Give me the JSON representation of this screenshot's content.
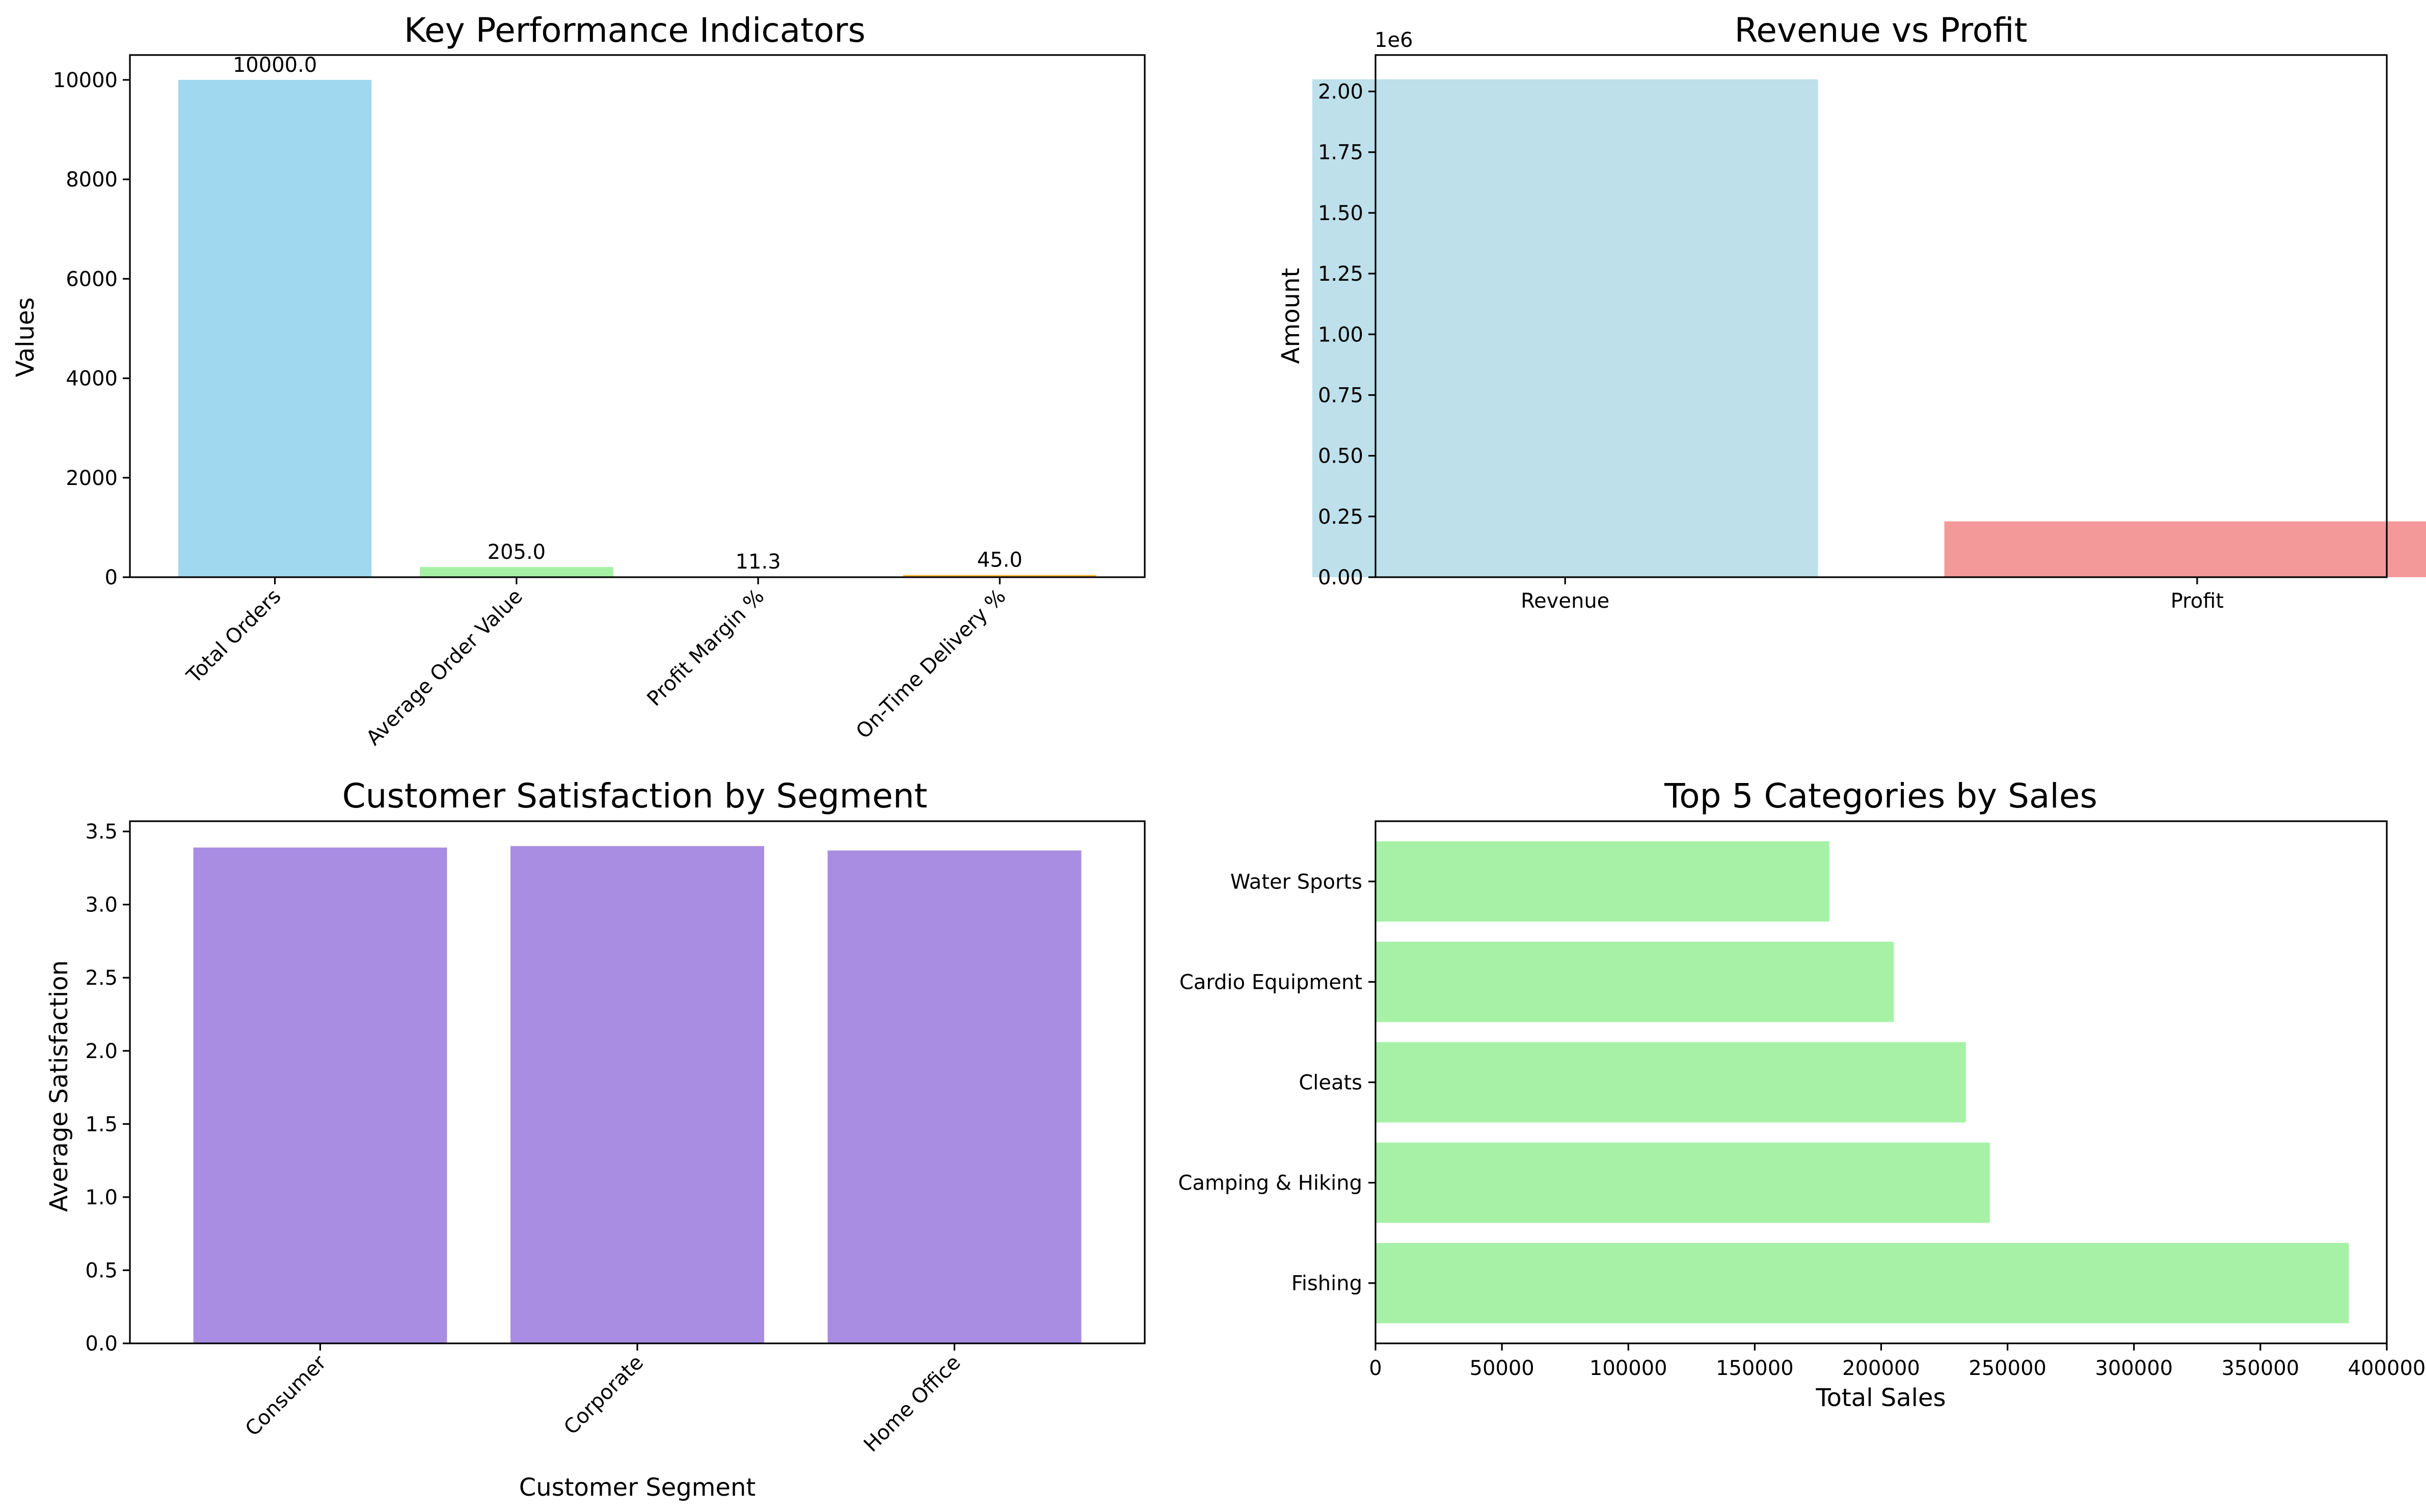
{
  "chart_data": [
    {
      "type": "bar",
      "title": "Key Performance Indicators",
      "xlabel": "",
      "ylabel": "Values",
      "ylim": [
        0,
        10500
      ],
      "yticks": [
        0,
        2000,
        4000,
        6000,
        8000,
        10000
      ],
      "categories": [
        "Total Orders",
        "Average Order Value",
        "Profit Margin %",
        "On-Time Delivery %"
      ],
      "values": [
        10000.0,
        205.0,
        11.3,
        45.0
      ],
      "data_labels": [
        "10000.0",
        "205.0",
        "11.3",
        "45.0"
      ],
      "colors": [
        "#87ceeb",
        "#90ee90",
        "#f08080",
        "#ffa500"
      ],
      "grid": false,
      "tick_rotation": 45
    },
    {
      "type": "bar",
      "title": "Revenue vs Profit",
      "xlabel": "",
      "ylabel": "Amount",
      "offset_label": "1e6",
      "ylim": [
        0,
        2.15
      ],
      "yticks": [
        "0.00",
        "0.25",
        "0.50",
        "0.75",
        "1.00",
        "1.25",
        "1.50",
        "1.75",
        "2.00"
      ],
      "categories": [
        "Revenue",
        "Profit"
      ],
      "values": [
        2.05,
        0.23
      ],
      "colors": [
        "#add8e6",
        "#f08080"
      ],
      "grid": false
    },
    {
      "type": "bar",
      "title": "Customer Satisfaction by Segment",
      "xlabel": "Customer Segment",
      "ylabel": "Average Satisfaction",
      "ylim": [
        0,
        3.57
      ],
      "yticks": [
        "0.0",
        "0.5",
        "1.0",
        "1.5",
        "2.0",
        "2.5",
        "3.0",
        "3.5"
      ],
      "categories": [
        "Consumer",
        "Corporate",
        "Home Office"
      ],
      "values": [
        3.39,
        3.4,
        3.37
      ],
      "colors": [
        "#9370db"
      ],
      "grid": false,
      "tick_rotation": 45
    },
    {
      "type": "bar",
      "orientation": "horizontal",
      "title": "Top 5 Categories by Sales",
      "xlabel": "Total Sales",
      "ylabel": "",
      "xlim": [
        0,
        400000
      ],
      "xticks": [
        0,
        50000,
        100000,
        150000,
        200000,
        250000,
        300000,
        350000,
        400000
      ],
      "categories": [
        "Fishing",
        "Camping & Hiking",
        "Cleats",
        "Cardio Equipment",
        "Water Sports"
      ],
      "values": [
        385000,
        243000,
        233500,
        205000,
        179500
      ],
      "colors": [
        "#90ee90"
      ],
      "grid": false
    }
  ]
}
